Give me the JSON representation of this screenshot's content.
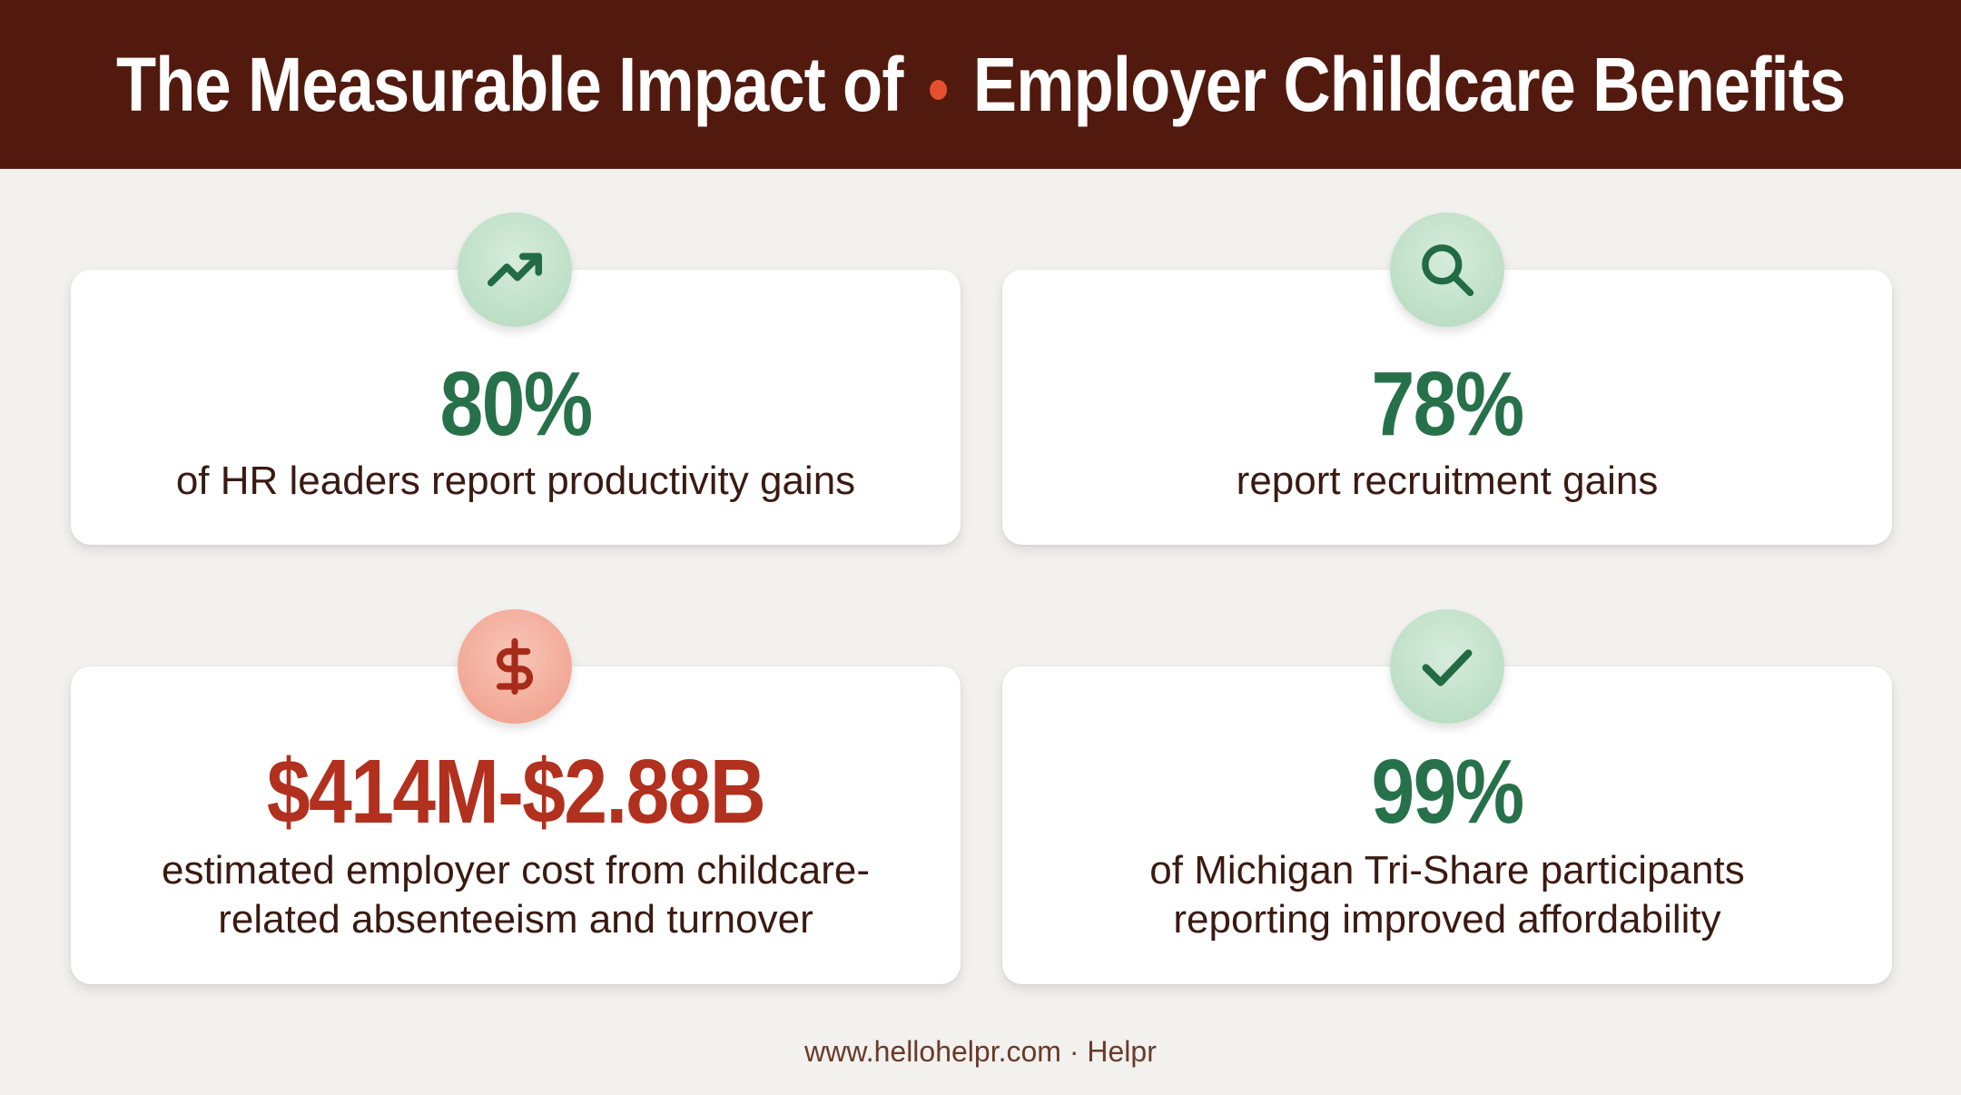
{
  "header": {
    "title_part1": "The Measurable Impact of",
    "title_part2": "Employer Childcare Benefits",
    "separator_color": "#e4502d",
    "background_color": "#521a0e"
  },
  "stats": [
    {
      "icon": "trending-up-icon",
      "value": "80%",
      "value_color": "#27714a",
      "description": "of HR leaders report productivity gains"
    },
    {
      "icon": "search-icon",
      "value": "78%",
      "value_color": "#27714a",
      "description": "report recruitment gains"
    },
    {
      "icon": "dollar-icon",
      "value": "$414M-$2.88B",
      "value_color": "#b2301e",
      "description_line1": "estimated employer cost from childcare-",
      "description_line2": "related absenteeism and turnover"
    },
    {
      "icon": "checkmark-icon",
      "value": "99%",
      "value_color": "#27714a",
      "description_line1": "of Michigan Tri-Share participants",
      "description_line2": "reporting improved affordability"
    }
  ],
  "footer": {
    "text": "www.hellohelpr.com · Helpr"
  }
}
